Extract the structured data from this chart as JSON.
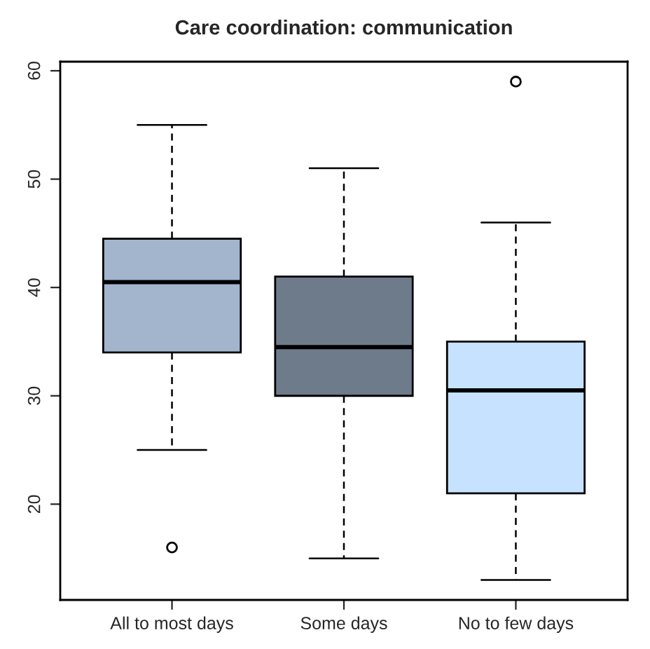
{
  "chart_data": {
    "type": "box",
    "title": "Care coordination: communication",
    "categories": [
      "All to most days",
      "Some days",
      "No to few days"
    ],
    "boxes": [
      {
        "low": 25,
        "q1": 34,
        "median": 40.5,
        "q3": 44.5,
        "high": 55,
        "outliers": [
          16
        ]
      },
      {
        "low": 15,
        "q1": 30,
        "median": 34.5,
        "q3": 41,
        "high": 51
      },
      {
        "low": 13,
        "q1": 21,
        "median": 30.5,
        "q3": 35,
        "high": 46,
        "outliers": [
          59
        ]
      }
    ],
    "colors": [
      "#a2b5cd",
      "#6e7b8b",
      "#c6e2ff"
    ],
    "ylim": [
      11.16,
      60.84
    ],
    "yticks": [
      20,
      30,
      40,
      50,
      60
    ],
    "grid": false,
    "legend": false
  }
}
